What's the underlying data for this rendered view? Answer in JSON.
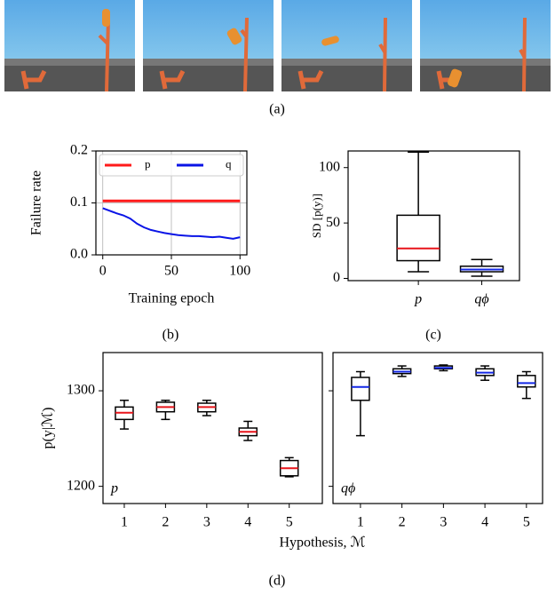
{
  "captions": {
    "a": "(a)"
  },
  "chart_data": [
    {
      "type": "line",
      "xlabel": "Training epoch",
      "ylabel": "Failure rate",
      "caption": "(b)",
      "x": [
        0,
        5,
        10,
        15,
        20,
        25,
        30,
        35,
        40,
        45,
        50,
        55,
        60,
        65,
        70,
        75,
        80,
        85,
        90,
        95,
        100
      ],
      "series": [
        {
          "name": "p",
          "color": "#ff1a1a",
          "values": [
            0.104,
            0.104,
            0.104,
            0.104,
            0.104,
            0.104,
            0.104,
            0.104,
            0.104,
            0.104,
            0.104,
            0.104,
            0.104,
            0.104,
            0.104,
            0.104,
            0.104,
            0.104,
            0.104,
            0.104,
            0.104
          ]
        },
        {
          "name": "q",
          "color": "#0a14e6",
          "values": [
            0.09,
            0.085,
            0.08,
            0.076,
            0.07,
            0.06,
            0.053,
            0.048,
            0.045,
            0.042,
            0.04,
            0.038,
            0.037,
            0.036,
            0.036,
            0.035,
            0.034,
            0.035,
            0.033,
            0.031,
            0.034
          ]
        }
      ],
      "xlim": [
        -5,
        105
      ],
      "xticks": [
        0,
        50,
        100
      ],
      "ylim": [
        0,
        0.2
      ],
      "yticks": [
        {
          "value": 0,
          "label": "0.0"
        },
        0.1,
        0.2
      ],
      "grid": true,
      "legend": "upper center"
    },
    {
      "type": "box",
      "ylabel": "SD [p(y)]",
      "caption": "(c)",
      "categories": [
        "p",
        "qϕ"
      ],
      "values": [
        [
          6,
          16,
          27,
          57,
          114
        ],
        [
          2,
          6,
          8,
          11,
          17
        ]
      ],
      "median_colors": [
        "#e8141a",
        "#1428e6"
      ],
      "ylim": [
        -2,
        115
      ],
      "yticks": [
        0,
        50,
        100
      ]
    },
    {
      "type": "box",
      "ylabel": "p(y|ℳ)",
      "xlabel": "Hypothesis, ℳ",
      "annotation": "p",
      "caption": "(d)",
      "categories": [
        "1",
        "2",
        "3",
        "4",
        "5"
      ],
      "values": [
        [
          1260,
          1270,
          1277,
          1283,
          1290
        ],
        [
          1270,
          1278,
          1283,
          1288,
          1290
        ],
        [
          1274,
          1278,
          1283,
          1287,
          1290
        ],
        [
          1248,
          1253,
          1257,
          1261,
          1268
        ],
        [
          1210,
          1211,
          1219,
          1227,
          1230
        ]
      ],
      "median_colors": [
        "#e8141a",
        "#e8141a",
        "#e8141a",
        "#e8141a",
        "#e8141a"
      ],
      "ylim": [
        1182,
        1340
      ],
      "yticks": [
        1200,
        1300
      ]
    },
    {
      "type": "box",
      "annotation": "qϕ",
      "categories": [
        "1",
        "2",
        "3",
        "4",
        "5"
      ],
      "values": [
        [
          1253,
          1290,
          1304,
          1314,
          1320
        ],
        [
          1315,
          1318,
          1320,
          1323,
          1326
        ],
        [
          1321,
          1323,
          1324,
          1326,
          1327
        ],
        [
          1311,
          1316,
          1319,
          1323,
          1326
        ],
        [
          1292,
          1304,
          1308,
          1316,
          1320
        ]
      ],
      "median_colors": [
        "#1428e6",
        "#1428e6",
        "#1428e6",
        "#1428e6",
        "#1428e6"
      ],
      "ylim": [
        1182,
        1340
      ],
      "yticks": [
        1200,
        1300
      ],
      "ytick_labels": false
    }
  ]
}
